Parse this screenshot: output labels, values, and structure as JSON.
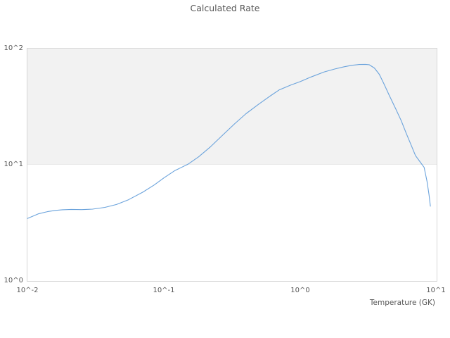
{
  "chart_data": {
    "type": "line",
    "title": "Calculated Rate",
    "xlabel": "Temperature (GK)",
    "ylabel": "",
    "x_scale": "log",
    "y_scale": "log",
    "xlim": [
      0.01,
      10
    ],
    "ylim": [
      1,
      100
    ],
    "x_ticks": [
      "10^-2",
      "10^-1",
      "10^0",
      "10^1"
    ],
    "y_ticks": [
      "10^0",
      "10^1",
      "10^2"
    ],
    "grid": "none; single shaded horizontal band between y=10^1 and y=10^2",
    "legend": "none",
    "colors": {
      "line": "#6ba3dc",
      "band": "#f2f2f2",
      "plot_border": "#d6d6d6",
      "text": "#565656"
    },
    "series": [
      {
        "name": "Calculated Rate",
        "x": [
          0.01,
          0.012,
          0.014,
          0.016,
          0.018,
          0.021,
          0.025,
          0.03,
          0.037,
          0.045,
          0.055,
          0.07,
          0.085,
          0.1,
          0.12,
          0.15,
          0.18,
          0.22,
          0.27,
          0.33,
          0.4,
          0.5,
          0.6,
          0.7,
          0.85,
          1.0,
          1.2,
          1.5,
          1.8,
          2.1,
          2.4,
          2.7,
          3.0,
          3.2,
          3.5,
          3.8,
          4.1,
          4.5,
          5.0,
          5.5,
          6.0,
          6.5,
          7.0,
          7.6,
          8.1,
          8.5,
          8.8,
          9.0
        ],
        "y": [
          3.45,
          3.78,
          3.95,
          4.05,
          4.1,
          4.13,
          4.11,
          4.15,
          4.3,
          4.55,
          5.0,
          5.8,
          6.7,
          7.7,
          8.9,
          10.1,
          11.7,
          14.3,
          18.0,
          22.5,
          27.5,
          33.5,
          39.0,
          44.0,
          48.5,
          52.0,
          57.0,
          63.0,
          66.8,
          69.8,
          71.8,
          72.9,
          73.2,
          72.6,
          68.0,
          60.0,
          50.0,
          39.5,
          30.5,
          24.0,
          18.5,
          14.8,
          12.0,
          10.5,
          9.5,
          7.2,
          5.5,
          4.4
        ]
      }
    ]
  }
}
